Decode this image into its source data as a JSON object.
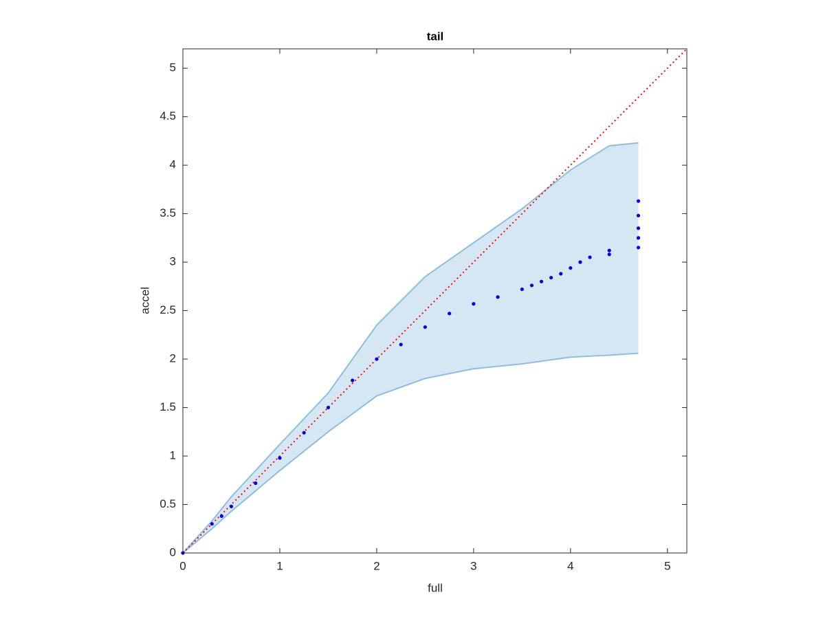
{
  "chart_data": {
    "type": "scatter",
    "title": "tail",
    "xlabel": "full",
    "ylabel": "accel",
    "xlim": [
      0,
      5.2
    ],
    "ylim": [
      0,
      5.2
    ],
    "xticks": [
      0,
      1,
      2,
      3,
      4,
      5
    ],
    "yticks": [
      0,
      0.5,
      1,
      1.5,
      2,
      2.5,
      3,
      3.5,
      4,
      4.5,
      5
    ],
    "band": {
      "color": "#8bbfdc",
      "fill": "#d6e7f4",
      "x": [
        0,
        0.3,
        0.5,
        1,
        1.5,
        2,
        2.5,
        3,
        3.5,
        4,
        4.4,
        4.7
      ],
      "upper": [
        0,
        0.33,
        0.58,
        1.12,
        1.65,
        2.35,
        2.85,
        3.2,
        3.55,
        3.95,
        4.2,
        4.23
      ],
      "lower": [
        0,
        0.25,
        0.43,
        0.85,
        1.25,
        1.62,
        1.8,
        1.9,
        1.95,
        2.02,
        2.04,
        2.06
      ]
    },
    "reference": {
      "color": "#ff0000",
      "x": [
        0,
        5.2
      ],
      "y": [
        0,
        5.2
      ]
    },
    "points": {
      "color": "#0000ee",
      "x": [
        0,
        0.3,
        0.4,
        0.5,
        0.75,
        1,
        1.25,
        1.5,
        1.75,
        2,
        2.25,
        2.5,
        2.75,
        3,
        3.25,
        3.5,
        3.6,
        3.7,
        3.8,
        3.9,
        4,
        4.1,
        4.2,
        4.4,
        4.4,
        4.7,
        4.7,
        4.7,
        4.7,
        4.7
      ],
      "y": [
        0,
        0.3,
        0.38,
        0.48,
        0.72,
        0.98,
        1.24,
        1.5,
        1.78,
        2.0,
        2.15,
        2.33,
        2.47,
        2.57,
        2.64,
        2.72,
        2.76,
        2.8,
        2.84,
        2.88,
        2.94,
        3.0,
        3.05,
        3.08,
        3.12,
        3.15,
        3.25,
        3.35,
        3.48,
        3.63
      ]
    }
  }
}
